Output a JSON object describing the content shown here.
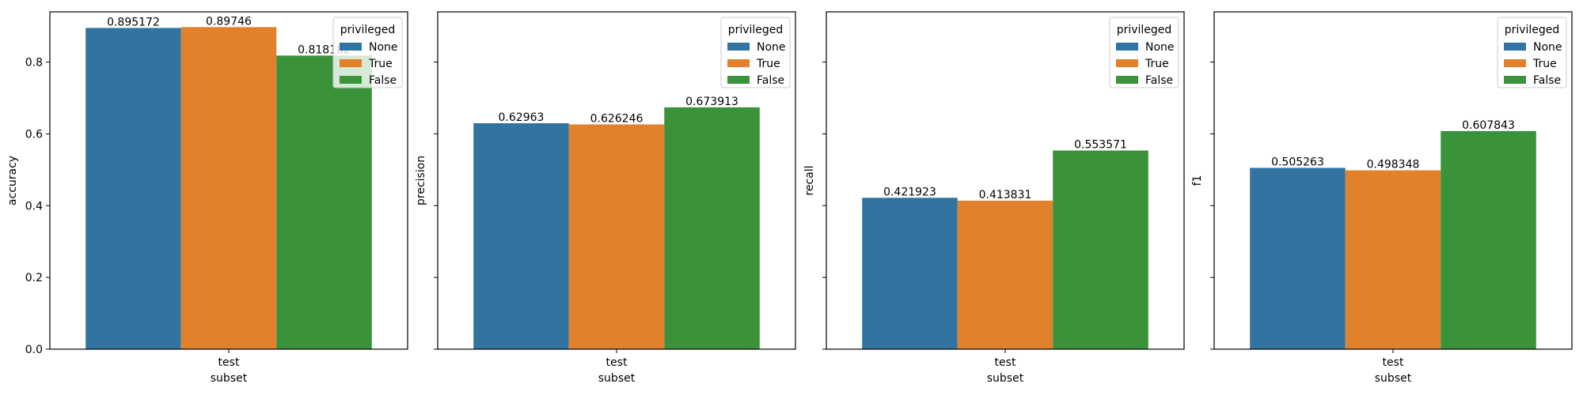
{
  "chart_data": [
    {
      "type": "bar",
      "categories": [
        "test"
      ],
      "series": [
        {
          "name": "None",
          "values": [
            0.895172
          ],
          "label": "0.895172"
        },
        {
          "name": "True",
          "values": [
            0.89746
          ],
          "label": "0.89746"
        },
        {
          "name": "False",
          "values": [
            0.818182
          ],
          "label": "0.818182"
        }
      ],
      "xlabel": "subset",
      "ylabel": "accuracy",
      "ylim": [
        0,
        0.94
      ],
      "yticks": [
        "0.0",
        "0.2",
        "0.4",
        "0.6",
        "0.8"
      ],
      "show_ytick_labels": true,
      "legend": {
        "title": "privileged",
        "placement": "top-right"
      },
      "grid": false
    },
    {
      "type": "bar",
      "categories": [
        "test"
      ],
      "series": [
        {
          "name": "None",
          "values": [
            0.62963
          ],
          "label": "0.62963"
        },
        {
          "name": "True",
          "values": [
            0.626246
          ],
          "label": "0.626246"
        },
        {
          "name": "False",
          "values": [
            0.673913
          ],
          "label": "0.673913"
        }
      ],
      "xlabel": "subset",
      "ylabel": "precision",
      "ylim": [
        0,
        0.94
      ],
      "yticks": [
        "0.0",
        "0.2",
        "0.4",
        "0.6",
        "0.8"
      ],
      "show_ytick_labels": false,
      "legend": {
        "title": "privileged",
        "placement": "top-right"
      },
      "grid": false
    },
    {
      "type": "bar",
      "categories": [
        "test"
      ],
      "series": [
        {
          "name": "None",
          "values": [
            0.421923
          ],
          "label": "0.421923"
        },
        {
          "name": "True",
          "values": [
            0.413831
          ],
          "label": "0.413831"
        },
        {
          "name": "False",
          "values": [
            0.553571
          ],
          "label": "0.553571"
        }
      ],
      "xlabel": "subset",
      "ylabel": "recall",
      "ylim": [
        0,
        0.94
      ],
      "yticks": [
        "0.0",
        "0.2",
        "0.4",
        "0.6",
        "0.8"
      ],
      "show_ytick_labels": false,
      "legend": {
        "title": "privileged",
        "placement": "top-right"
      },
      "grid": false
    },
    {
      "type": "bar",
      "categories": [
        "test"
      ],
      "series": [
        {
          "name": "None",
          "values": [
            0.505263
          ],
          "label": "0.505263"
        },
        {
          "name": "True",
          "values": [
            0.498348
          ],
          "label": "0.498348"
        },
        {
          "name": "False",
          "values": [
            0.607843
          ],
          "label": "0.607843"
        }
      ],
      "xlabel": "subset",
      "ylabel": "f1",
      "ylim": [
        0,
        0.94
      ],
      "yticks": [
        "0.0",
        "0.2",
        "0.4",
        "0.6",
        "0.8"
      ],
      "show_ytick_labels": false,
      "legend": {
        "title": "privileged",
        "placement": "top-right"
      },
      "grid": false
    }
  ],
  "colors": {
    "None": "#3274a1",
    "True": "#e1812c",
    "False": "#3a923a",
    "axis": "#000000",
    "background": "#ffffff"
  }
}
